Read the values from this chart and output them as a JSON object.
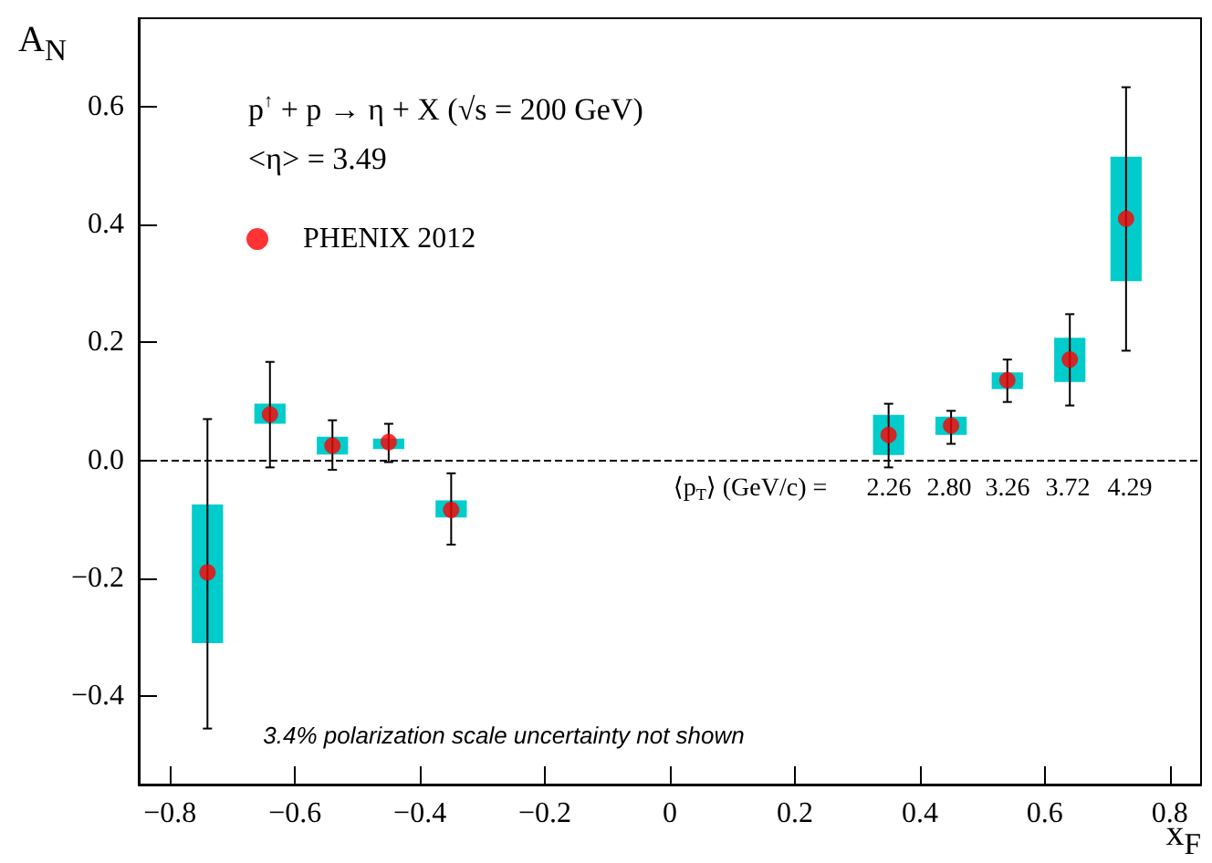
{
  "chart_data": {
    "type": "scatter",
    "xlabel": "x$_{F}$",
    "ylabel": "A$_{N}$",
    "xlim": [
      -0.85,
      0.85
    ],
    "ylim": [
      -0.55,
      0.75
    ],
    "xticks": [
      {
        "value": -0.8,
        "label": "−0.8"
      },
      {
        "value": -0.6,
        "label": "−0.6"
      },
      {
        "value": -0.4,
        "label": "−0.4"
      },
      {
        "value": -0.2,
        "label": "−0.2"
      },
      0,
      0.2,
      0.4,
      0.6,
      0.8
    ],
    "yticks": [
      {
        "value": -0.4,
        "label": "−0.4"
      },
      {
        "value": -0.2,
        "label": "−0.2"
      },
      {
        "value": 0,
        "label": "0.0"
      },
      0.2,
      0.4,
      0.6
    ],
    "grid": false,
    "legend": "top left",
    "series": [
      {
        "type": "bar",
        "color": "#00cccc",
        "x": [
          -0.74,
          -0.64,
          -0.54,
          -0.45,
          -0.35,
          0.35,
          0.45,
          0.54,
          0.64,
          0.73
        ],
        "base": [
          -0.31,
          0.062,
          0.01,
          0.019,
          -0.097,
          0.009,
          0.043,
          0.121,
          0.133,
          0.304
        ],
        "values": [
          0.235,
          0.034,
          0.03,
          0.018,
          0.029,
          0.068,
          0.031,
          0.028,
          0.075,
          0.211
        ]
      },
      {
        "name": "PHENIX 2012",
        "color": "#ff0000",
        "marker": "circle",
        "x": [
          -0.74,
          -0.64,
          -0.54,
          -0.45,
          -0.35,
          0.35,
          0.45,
          0.54,
          0.64,
          0.73
        ],
        "values": [
          -0.19,
          0.078,
          0.025,
          0.031,
          -0.084,
          0.043,
          0.059,
          0.136,
          0.171,
          0.41
        ],
        "errors": [
          [
            -0.455,
            0.07
          ],
          [
            -0.012,
            0.167
          ],
          [
            -0.016,
            0.068
          ],
          [
            -0.003,
            0.062
          ],
          [
            -0.143,
            -0.022
          ],
          [
            -0.012,
            0.096
          ],
          [
            0.028,
            0.084
          ],
          [
            0.099,
            0.171
          ],
          [
            0.093,
            0.248
          ],
          [
            0.186,
            0.633
          ]
        ]
      }
    ],
    "ref_lines": [
      {
        "axis": "y",
        "value": 0,
        "color": "#000000",
        "line_style": "dashed"
      }
    ],
    "annotations": [
      "p$^{↑}$ + p → η + X (√s = 200 GeV)",
      "<η> = 3.49",
      "3.4% polarization scale uncertainty not shown",
      "⟨p$_{T}$⟩ (GeV/c) =",
      "2.26",
      "2.80",
      "3.26",
      "3.72",
      "4.29"
    ]
  }
}
